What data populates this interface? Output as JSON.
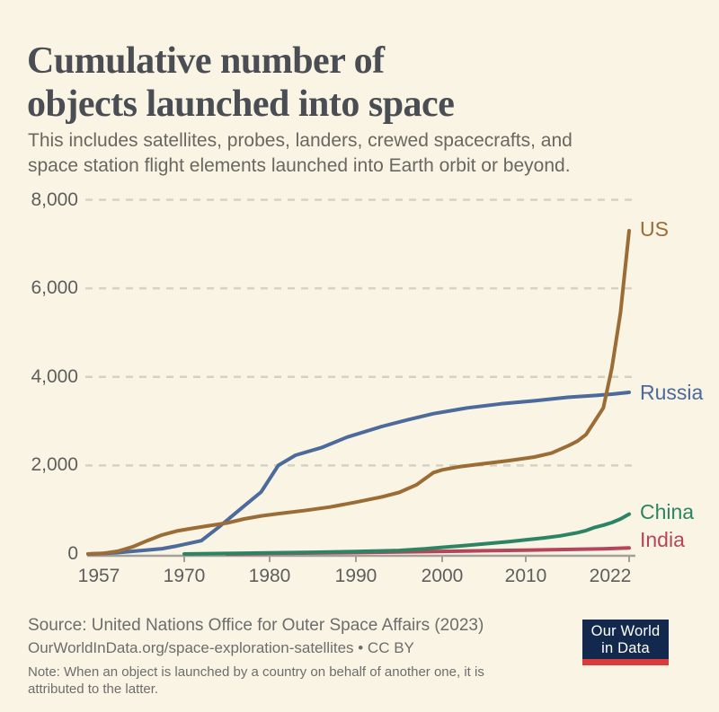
{
  "title": {
    "lines": [
      "Cumulative number of",
      "objects launched into space"
    ]
  },
  "subtitle": {
    "lines": [
      "This includes satellites, probes, landers, crewed spacecrafts, and",
      "space station flight elements launched into Earth orbit or beyond."
    ]
  },
  "footer": {
    "source": "Source: United Nations Office for Outer Space Affairs (2023)",
    "url_line": "OurWorldInData.org/space-exploration-satellites • CC BY",
    "note_lines": [
      "Note: When an object is launched by a country on behalf of another one, it is",
      "attributed to the latter."
    ],
    "logo": {
      "lines": [
        "Our World",
        "in Data"
      ],
      "bg": "#12294d",
      "stripe": "#d93a3c",
      "text_color": "#ffffff"
    }
  },
  "colors": {
    "background": "#f9f4e3",
    "title_text": "#4a4e54",
    "subtitle_text": "#696760",
    "tick_text": "#5e5e5e",
    "gridline": "#d5d1c5",
    "axis_line": "#a3a099"
  },
  "chart_data": {
    "type": "line",
    "title": "Cumulative number of objects launched into space",
    "xlabel": "",
    "ylabel": "",
    "x_range": [
      1957,
      2023
    ],
    "y_range": [
      0,
      8000
    ],
    "grid": "horizontal-dashed",
    "legend": "end-of-line-labels",
    "x_ticks": [
      {
        "year": 1957,
        "label": "1957"
      },
      {
        "year": 1970,
        "label": "1970"
      },
      {
        "year": 1980,
        "label": "1980"
      },
      {
        "year": 1990,
        "label": "1990"
      },
      {
        "year": 2000,
        "label": "2000"
      },
      {
        "year": 2010,
        "label": "2010"
      },
      {
        "year": 2022,
        "label": "2022"
      }
    ],
    "y_ticks": [
      {
        "value": 0,
        "label": "0"
      },
      {
        "value": 2000,
        "label": "2,000"
      },
      {
        "value": 4000,
        "label": "4,000"
      },
      {
        "value": 6000,
        "label": "6,000"
      },
      {
        "value": 8000,
        "label": "8,000"
      }
    ],
    "series": [
      {
        "name": "US",
        "color": "#9b6c35",
        "points": [
          [
            1957,
            0
          ],
          [
            1959,
            15
          ],
          [
            1961,
            60
          ],
          [
            1963,
            160
          ],
          [
            1965,
            300
          ],
          [
            1967,
            430
          ],
          [
            1969,
            520
          ],
          [
            1971,
            580
          ],
          [
            1973,
            640
          ],
          [
            1975,
            700
          ],
          [
            1977,
            790
          ],
          [
            1979,
            860
          ],
          [
            1981,
            910
          ],
          [
            1984,
            980
          ],
          [
            1987,
            1060
          ],
          [
            1990,
            1170
          ],
          [
            1993,
            1290
          ],
          [
            1995,
            1390
          ],
          [
            1997,
            1560
          ],
          [
            1999,
            1840
          ],
          [
            2000,
            1900
          ],
          [
            2002,
            1970
          ],
          [
            2005,
            2040
          ],
          [
            2008,
            2110
          ],
          [
            2011,
            2190
          ],
          [
            2013,
            2280
          ],
          [
            2015,
            2450
          ],
          [
            2016,
            2550
          ],
          [
            2017,
            2700
          ],
          [
            2018,
            3000
          ],
          [
            2019,
            3300
          ],
          [
            2020,
            4200
          ],
          [
            2021,
            5450
          ],
          [
            2022,
            7300
          ]
        ]
      },
      {
        "name": "Russia",
        "color": "#4c6a9c",
        "points": [
          [
            1957,
            0
          ],
          [
            1959,
            10
          ],
          [
            1961,
            30
          ],
          [
            1963,
            60
          ],
          [
            1965,
            90
          ],
          [
            1967,
            120
          ],
          [
            1969,
            180
          ],
          [
            1972,
            300
          ],
          [
            1974,
            600
          ],
          [
            1975,
            760
          ],
          [
            1977,
            1080
          ],
          [
            1979,
            1400
          ],
          [
            1981,
            2000
          ],
          [
            1983,
            2230
          ],
          [
            1986,
            2400
          ],
          [
            1989,
            2640
          ],
          [
            1993,
            2880
          ],
          [
            1996,
            3030
          ],
          [
            1999,
            3170
          ],
          [
            2003,
            3300
          ],
          [
            2007,
            3390
          ],
          [
            2011,
            3460
          ],
          [
            2015,
            3540
          ],
          [
            2018,
            3580
          ],
          [
            2020,
            3610
          ],
          [
            2022,
            3650
          ]
        ]
      },
      {
        "name": "China",
        "color": "#2d8465",
        "points": [
          [
            1970,
            1
          ],
          [
            1975,
            12
          ],
          [
            1980,
            25
          ],
          [
            1985,
            38
          ],
          [
            1990,
            55
          ],
          [
            1995,
            80
          ],
          [
            1998,
            115
          ],
          [
            2000,
            150
          ],
          [
            2003,
            195
          ],
          [
            2005,
            230
          ],
          [
            2008,
            280
          ],
          [
            2010,
            320
          ],
          [
            2012,
            360
          ],
          [
            2014,
            410
          ],
          [
            2016,
            480
          ],
          [
            2017,
            530
          ],
          [
            2018,
            600
          ],
          [
            2019,
            650
          ],
          [
            2020,
            710
          ],
          [
            2021,
            790
          ],
          [
            2022,
            900
          ]
        ]
      },
      {
        "name": "India",
        "color": "#b5455a",
        "points": [
          [
            1975,
            1
          ],
          [
            1980,
            12
          ],
          [
            1985,
            22
          ],
          [
            1990,
            32
          ],
          [
            1995,
            45
          ],
          [
            2000,
            58
          ],
          [
            2005,
            72
          ],
          [
            2010,
            85
          ],
          [
            2013,
            95
          ],
          [
            2016,
            105
          ],
          [
            2019,
            115
          ],
          [
            2022,
            135
          ]
        ]
      }
    ]
  }
}
